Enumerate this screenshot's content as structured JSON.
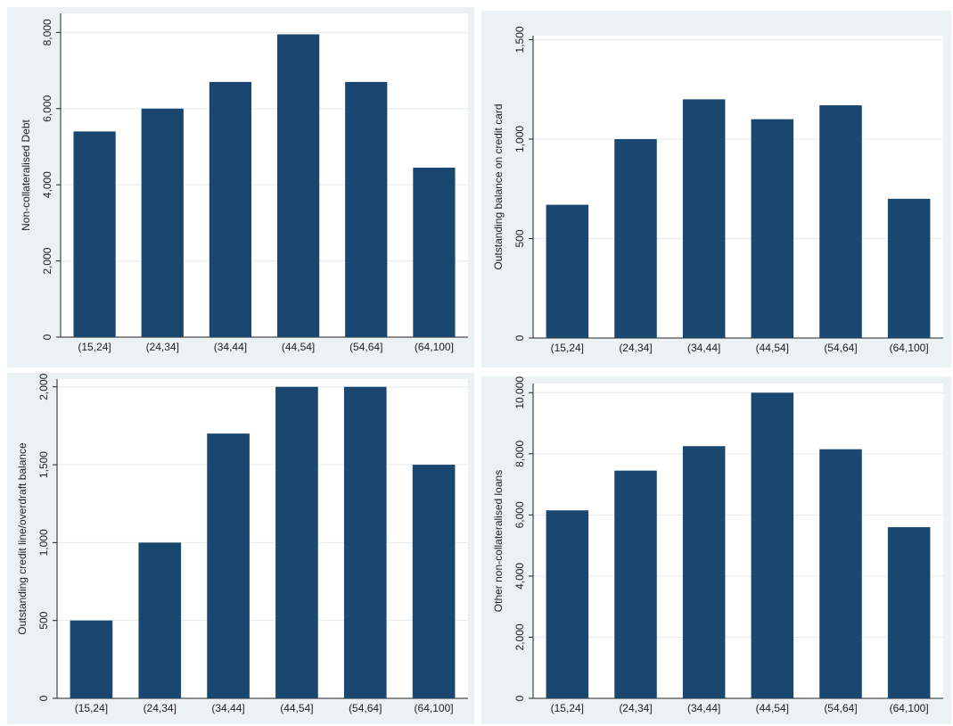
{
  "chart_data": [
    {
      "type": "bar",
      "y_label": "Non-collateralised Debt",
      "color": "#1a476f",
      "grid": true,
      "categories": [
        "(15,24]",
        "(24,34]",
        "(34,44]",
        "(44,54]",
        "(54,64]",
        "(64,100]"
      ],
      "values": [
        5400,
        6000,
        6700,
        7950,
        6700,
        4450
      ],
      "ylim": [
        0,
        8500
      ],
      "yticks": [
        0,
        {
          "value": 2000,
          "label": "2,000"
        },
        {
          "value": 4000,
          "label": "4,000"
        },
        {
          "value": 6000,
          "label": "6,000"
        },
        {
          "value": 8000,
          "label": "8,000"
        }
      ]
    },
    {
      "type": "bar",
      "y_label": "Outstanding balance on credit card",
      "color": "#1a476f",
      "grid": true,
      "categories": [
        "(15,24]",
        "(24,34]",
        "(34,44]",
        "(44,54]",
        "(54,64]",
        "(64,100]"
      ],
      "values": [
        670,
        1000,
        1200,
        1100,
        1170,
        700
      ],
      "ylim": [
        0,
        1520
      ],
      "yticks": [
        0,
        500,
        {
          "value": 1000,
          "label": "1,000"
        },
        {
          "value": 1500,
          "label": "1,500"
        }
      ]
    },
    {
      "type": "bar",
      "y_label": "Outstanding credit line/overdraft balance",
      "color": "#1a476f",
      "grid": true,
      "categories": [
        "(15,24]",
        "(24,34]",
        "(34,44]",
        "(44,54]",
        "(54,64]",
        "(64,100]"
      ],
      "values": [
        500,
        1000,
        1700,
        2000,
        2000,
        1500
      ],
      "ylim": [
        0,
        2050
      ],
      "yticks": [
        0,
        500,
        {
          "value": 1000,
          "label": "1,000"
        },
        {
          "value": 1500,
          "label": "1,500"
        },
        {
          "value": 2000,
          "label": "2,000"
        }
      ]
    },
    {
      "type": "bar",
      "y_label": "Other non-collateralised loans",
      "color": "#1a476f",
      "grid": true,
      "categories": [
        "(15,24]",
        "(24,34]",
        "(34,44]",
        "(44,54]",
        "(54,64]",
        "(64,100]"
      ],
      "values": [
        6150,
        7450,
        8250,
        10000,
        8150,
        5600
      ],
      "ylim": [
        0,
        10300
      ],
      "yticks": [
        0,
        {
          "value": 2000,
          "label": "2,000"
        },
        {
          "value": 4000,
          "label": "4,000"
        },
        {
          "value": 6000,
          "label": "6,000"
        },
        {
          "value": 8000,
          "label": "8,000"
        },
        {
          "value": 10000,
          "label": "10,000"
        }
      ]
    }
  ]
}
